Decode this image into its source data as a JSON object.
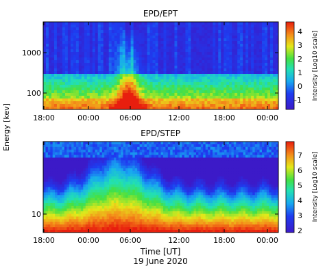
{
  "chart_data": [
    {
      "type": "heatmap",
      "title": "EPD/EPT",
      "ylabel": "Energy [kev]",
      "x_ticks": [
        "18:00",
        "00:00",
        "06:00",
        "12:00",
        "18:00",
        "00:00"
      ],
      "y_ticks": [
        "1000",
        "100"
      ],
      "y_scale": "log",
      "colorbar": {
        "label": "Intensity [Log10 scale]",
        "range": [
          -2,
          4.5
        ],
        "ticks": [
          "4",
          "3",
          "2",
          "1",
          "0",
          "-1"
        ]
      },
      "features": [
        "background intensity low (~-1) above ~300 keV",
        "enhancement from ~03:00 to ~06:00 peaking near 05:00 at lowest energies (~4)",
        "low energies (~30-100 keV) elevated (~1-2) across the day"
      ]
    },
    {
      "type": "heatmap",
      "title": "EPD/STEP",
      "ylabel": "Energy [kev]",
      "x_ticks": [
        "18:00",
        "00:00",
        "06:00",
        "12:00",
        "18:00",
        "00:00"
      ],
      "y_ticks": [
        "10"
      ],
      "y_scale": "log",
      "colorbar": {
        "label": "Intensity [Log10 scale]",
        "range": [
          2,
          7.5
        ],
        "ticks": [
          "7",
          "6",
          "5",
          "4",
          "3",
          "2"
        ]
      },
      "features": [
        "strong intensity (~7) at lowest energies throughout",
        "broad enhancement from ~00:00 to ~06:00 reaching higher energies",
        "gradual decay after ~06:00"
      ]
    }
  ],
  "xaxis": {
    "label": "Time [UT]",
    "date": "19 June 2020"
  },
  "colors": {
    "low": "#3a00c8",
    "mid": "#33d633",
    "high": "#e81e0e"
  }
}
